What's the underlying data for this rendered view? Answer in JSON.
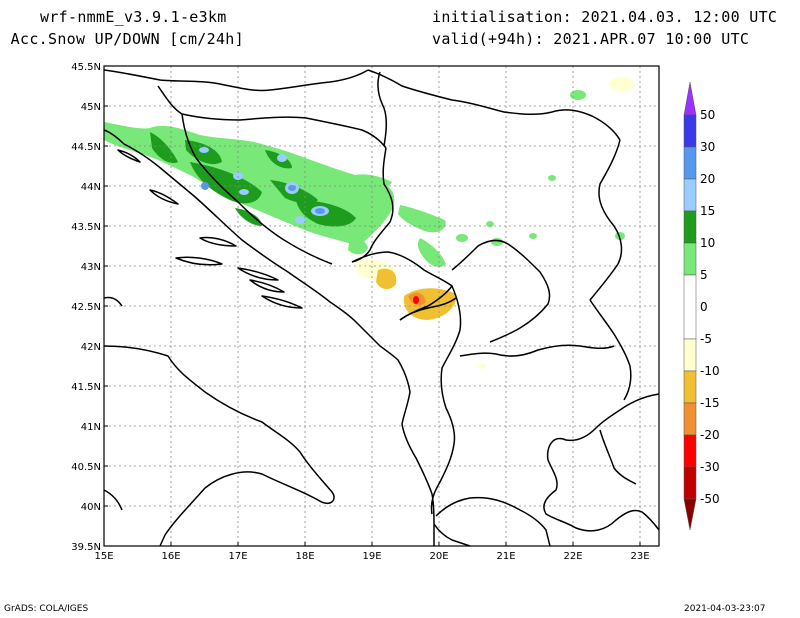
{
  "header": {
    "model": "wrf-nmmE_v3.9.1-e3km",
    "field": "n Acc.Snow UP/DOWN [cm/24h]",
    "init": "initialisation: 2021.04.03.  12:00 UTC",
    "valid": "valid(+94h): 2021.APR.07 10:00 UTC"
  },
  "footer": {
    "left": "GrADS: COLA/IGES",
    "right": "2021-04-03-23:07"
  },
  "map": {
    "lat_labels": [
      "45.5N",
      "45N",
      "44.5N",
      "44N",
      "43.5N",
      "43N",
      "42.5N",
      "42N",
      "41.5N",
      "41N",
      "40.5N",
      "40N",
      "39.5N"
    ],
    "lon_labels": [
      "15E",
      "16E",
      "17E",
      "18E",
      "19E",
      "20E",
      "21E",
      "22E",
      "23E"
    ],
    "lat_range": [
      39.5,
      45.5
    ],
    "lon_range": [
      15,
      23.3
    ]
  },
  "colorbar": {
    "labels": [
      "50",
      "30",
      "20",
      "15",
      "10",
      "5",
      "0",
      "-5",
      "-10",
      "-15",
      "-20",
      "-30",
      "-50"
    ],
    "colors": [
      "#9b30ff",
      "#3a3ae8",
      "#5599ee",
      "#99ccff",
      "#1e9c1e",
      "#78e878",
      "#ffffff",
      "#ffffd0",
      "#f0c030",
      "#f09030",
      "#ff0000",
      "#c00000",
      "#8b0000"
    ]
  },
  "colors": {
    "light_green": "#78e878",
    "dark_green": "#1e9c1e",
    "light_blue": "#99ccff",
    "mid_blue": "#5599ee",
    "pale_yellow": "#ffffd0",
    "yellow": "#f0c030",
    "orange": "#f09030",
    "red": "#ff0000"
  }
}
